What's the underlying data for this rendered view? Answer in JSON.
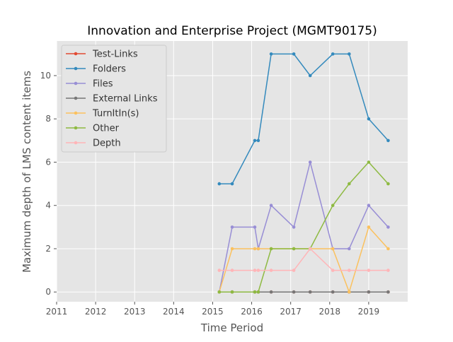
{
  "chart_data": {
    "type": "line",
    "title": "Innovation and Enterprise Project (MGMT90175)",
    "xlabel": "Time Period",
    "ylabel": "Maximum depth of LMS content items",
    "xlim": [
      2011.0,
      2020.0
    ],
    "ylim": [
      -0.45,
      11.6
    ],
    "xticks": [
      "2011",
      "2012",
      "2013",
      "2014",
      "2015",
      "2016",
      "2017",
      "2018",
      "2019"
    ],
    "yticks": [
      "0",
      "2",
      "4",
      "6",
      "8",
      "10"
    ],
    "grid": true,
    "legend_position": "top-left",
    "x": [
      2015.17,
      2015.5,
      2016.08,
      2016.17,
      2016.5,
      2017.08,
      2017.5,
      2018.08,
      2018.5,
      2019.0,
      2019.5
    ],
    "series": [
      {
        "name": "Test-Links",
        "color": "#E24A33",
        "values": [
          0,
          0,
          0,
          0,
          0,
          0,
          0,
          0,
          0,
          0,
          0
        ]
      },
      {
        "name": "Folders",
        "color": "#348ABD",
        "values": [
          5,
          5,
          7,
          7,
          11,
          11,
          10,
          11,
          11,
          8,
          7
        ]
      },
      {
        "name": "Files",
        "color": "#988ED5",
        "values": [
          0,
          3,
          3,
          2,
          4,
          3,
          6,
          2,
          2,
          4,
          3
        ]
      },
      {
        "name": "External Links",
        "color": "#777777",
        "values": [
          0,
          0,
          0,
          0,
          0,
          0,
          0,
          0,
          0,
          0,
          0
        ]
      },
      {
        "name": "TurnItIn(s)",
        "color": "#FBC15E",
        "values": [
          0,
          2,
          2,
          2,
          2,
          2,
          2,
          2,
          0,
          3,
          2
        ]
      },
      {
        "name": "Other",
        "color": "#8EBA42",
        "values": [
          0,
          0,
          0,
          0,
          2,
          2,
          2,
          4,
          5,
          6,
          5
        ]
      },
      {
        "name": "Depth",
        "color": "#FFB5B8",
        "values": [
          1,
          1,
          1,
          1,
          1,
          1,
          2,
          1,
          1,
          1,
          1
        ]
      }
    ]
  }
}
